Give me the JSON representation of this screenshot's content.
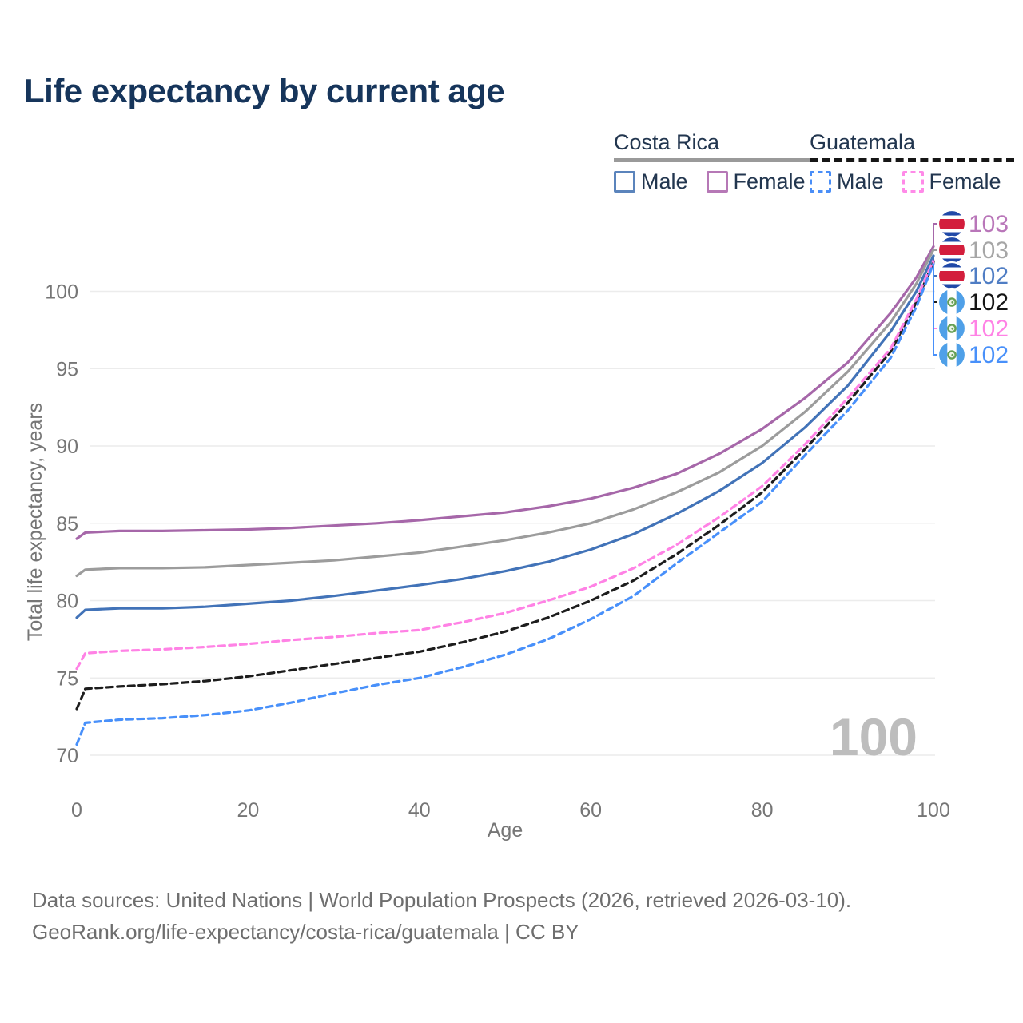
{
  "title": "Life expectancy by current age",
  "watermark": "100",
  "legend": {
    "groups": [
      {
        "country": "Costa Rica",
        "line_style": "solid",
        "line_color": "#9a9a9a",
        "items": [
          {
            "label": "Male",
            "color": "#4273b8",
            "dashed": false
          },
          {
            "label": "Female",
            "color": "#a667a9",
            "dashed": false
          }
        ]
      },
      {
        "country": "Guatemala",
        "line_style": "dashed",
        "line_color": "#161616",
        "items": [
          {
            "label": "Male",
            "color": "#4890fa",
            "dashed": true
          },
          {
            "label": "Female",
            "color": "#ff82e5",
            "dashed": true
          }
        ]
      }
    ]
  },
  "footer": {
    "line1": "Data sources: United Nations | World Population Prospects (2026, retrieved 2026-03-10).",
    "line2": "GeoRank.org/life-expectancy/costa-rica/guatemala | CC BY"
  },
  "chart_data": {
    "type": "line",
    "title": "Life expectancy by current age",
    "xlabel": "Age",
    "ylabel": "Total life expectancy, years",
    "xlim": [
      0,
      100
    ],
    "ylim": [
      70,
      100
    ],
    "xticks": [
      0,
      20,
      40,
      60,
      80,
      100
    ],
    "yticks": [
      70,
      75,
      80,
      85,
      90,
      95,
      100
    ],
    "grid": true,
    "legend_position": "top-right",
    "x": [
      0,
      1,
      5,
      10,
      15,
      20,
      25,
      30,
      35,
      40,
      45,
      50,
      55,
      60,
      65,
      70,
      75,
      80,
      85,
      90,
      95,
      98,
      100
    ],
    "series": [
      {
        "name": "Costa Rica Female",
        "color": "#a667a9",
        "dashed": false,
        "flag": "costa-rica",
        "end_label": "103",
        "label_color": "#b976b9",
        "values": [
          84.0,
          84.4,
          84.5,
          84.5,
          84.55,
          84.6,
          84.7,
          84.85,
          85.0,
          85.2,
          85.45,
          85.7,
          86.1,
          86.6,
          87.3,
          88.2,
          89.5,
          91.1,
          93.1,
          95.4,
          98.6,
          100.9,
          102.9
        ]
      },
      {
        "name": "Costa Rica (both sexes)",
        "color": "#9c9c9c",
        "dashed": false,
        "flag": "costa-rica",
        "end_label": "103",
        "label_color": "#a6a6a6",
        "values": [
          81.6,
          82.0,
          82.1,
          82.1,
          82.15,
          82.3,
          82.45,
          82.6,
          82.85,
          83.1,
          83.5,
          83.9,
          84.4,
          85.0,
          85.9,
          87.0,
          88.3,
          90.0,
          92.2,
          94.8,
          98.0,
          100.5,
          102.7
        ]
      },
      {
        "name": "Costa Rica Male",
        "color": "#4273b8",
        "dashed": false,
        "flag": "costa-rica",
        "end_label": "102",
        "label_color": "#4f7dc4",
        "values": [
          78.9,
          79.4,
          79.5,
          79.5,
          79.6,
          79.8,
          80.0,
          80.3,
          80.65,
          81.0,
          81.4,
          81.9,
          82.5,
          83.3,
          84.3,
          85.6,
          87.1,
          88.9,
          91.2,
          93.9,
          97.4,
          100.0,
          102.3
        ]
      },
      {
        "name": "Guatemala (both sexes)",
        "color": "#1d1d1d",
        "dashed": true,
        "flag": "guatemala",
        "end_label": "102",
        "label_color": "#151515",
        "values": [
          73.0,
          74.3,
          74.45,
          74.6,
          74.8,
          75.1,
          75.5,
          75.9,
          76.3,
          76.7,
          77.3,
          78.0,
          78.9,
          80.0,
          81.3,
          83.0,
          84.9,
          87.0,
          89.8,
          92.8,
          96.1,
          99.3,
          101.9
        ]
      },
      {
        "name": "Guatemala Female",
        "color": "#ff82e5",
        "dashed": true,
        "flag": "guatemala",
        "end_label": "102",
        "label_color": "#ff82e5",
        "values": [
          75.6,
          76.6,
          76.75,
          76.85,
          77.0,
          77.2,
          77.45,
          77.65,
          77.9,
          78.1,
          78.6,
          79.2,
          80.0,
          80.9,
          82.1,
          83.6,
          85.4,
          87.4,
          90.1,
          93.1,
          96.3,
          99.5,
          102.0
        ]
      },
      {
        "name": "Guatemala Male",
        "color": "#4890fa",
        "dashed": true,
        "flag": "guatemala",
        "end_label": "102",
        "label_color": "#4890fa",
        "values": [
          70.7,
          72.1,
          72.3,
          72.4,
          72.6,
          72.9,
          73.4,
          74.0,
          74.55,
          75.0,
          75.7,
          76.5,
          77.5,
          78.8,
          80.3,
          82.4,
          84.4,
          86.4,
          89.4,
          92.3,
          95.7,
          99.0,
          101.8
        ]
      }
    ]
  }
}
